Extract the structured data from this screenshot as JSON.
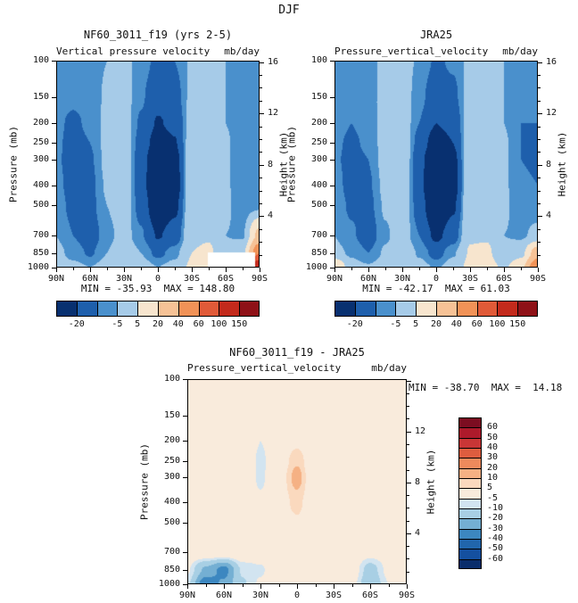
{
  "figure": {
    "title": "DJF"
  },
  "chart_data": [
    {
      "type": "filled-contour",
      "title": "NF60_3011_f19 (yrs 2-5)",
      "subtitle": "Vertical pressure velocity",
      "units": "mb/day",
      "stats": "MIN = -35.93  MAX = 148.80",
      "ylabel_left": "Pressure (mb)",
      "ylabel_right": "Height (km)",
      "x_tick_labels": [
        "90N",
        "60N",
        "30N",
        "0",
        "30S",
        "60S",
        "90S"
      ],
      "pressure_ticks": [
        100,
        150,
        200,
        250,
        300,
        400,
        500,
        700,
        850,
        1000
      ],
      "height_ticks": [
        16,
        12,
        8,
        4
      ],
      "grid": {
        "lat": [
          90,
          75,
          60,
          45,
          30,
          15,
          0,
          -15,
          -30,
          -45,
          -60,
          -75,
          -90
        ],
        "pressure": [
          100,
          150,
          200,
          250,
          300,
          400,
          500,
          700,
          850,
          1000
        ],
        "values": [
          [
            -7,
            -8,
            -7,
            -5,
            -3,
            -7,
            -12,
            -10,
            -4,
            -3,
            -5,
            -7,
            -7
          ],
          [
            -8,
            -9,
            -8,
            -4,
            -2,
            -9,
            -16,
            -13,
            -3,
            -2,
            -5,
            -8,
            -8
          ],
          [
            -9,
            -11,
            -9,
            -3,
            -1,
            -11,
            -21,
            -17,
            -1,
            0,
            -5,
            -9,
            -9
          ],
          [
            -9,
            -12,
            -10,
            -3,
            0,
            -13,
            -26,
            -21,
            1,
            2,
            -4,
            -9,
            -10
          ],
          [
            -9,
            -13,
            -11,
            -3,
            1,
            -15,
            -32,
            -25,
            3,
            3,
            -4,
            -9,
            -10
          ],
          [
            -8,
            -13,
            -12,
            -4,
            1,
            -15,
            -35,
            -27,
            4,
            4,
            -4,
            -9,
            -9
          ],
          [
            -7,
            -12,
            -12,
            -5,
            0,
            -13,
            -30,
            -23,
            4,
            5,
            -4,
            -8,
            -7
          ],
          [
            -5,
            -10,
            -14,
            -7,
            -2,
            -9,
            -21,
            -15,
            3,
            4,
            -5,
            -6,
            25
          ],
          [
            -3,
            -7,
            -11,
            -5,
            1,
            -5,
            -12,
            -7,
            5,
            7,
            -3,
            2,
            60
          ],
          [
            -2,
            -3,
            -5,
            -2,
            4,
            -1,
            -5,
            -2,
            7,
            9,
            3,
            30,
            148
          ]
        ]
      },
      "mask": {
        "lat": [
          -86,
          -44
        ],
        "pressure": [
          845,
          1000
        ],
        "color": "#FFFFFF"
      },
      "colorbar": {
        "orientation": "horizontal",
        "levels": [
          -20,
          -10,
          -5,
          5,
          20,
          40,
          60,
          100,
          150
        ],
        "labels": [
          "-20",
          "",
          "-5",
          "5",
          "20",
          "40",
          "60",
          "100",
          "150"
        ],
        "colors": [
          "#083070",
          "#1E5FAC",
          "#4A90CC",
          "#A6CBE8",
          "#F7E5CE",
          "#F6C296",
          "#F19257",
          "#E05A38",
          "#C32A1C",
          "#8E1117"
        ]
      }
    },
    {
      "type": "filled-contour",
      "title": "JRA25",
      "subtitle": "Pressure_vertical_velocity",
      "units": "mb/day",
      "stats": "MIN = -42.17  MAX = 61.03",
      "ylabel_left": "Pressure (mb)",
      "ylabel_right": "Height (km)",
      "x_tick_labels": [
        "90N",
        "60N",
        "30N",
        "0",
        "30S",
        "60S",
        "90S"
      ],
      "pressure_ticks": [
        100,
        150,
        200,
        250,
        300,
        400,
        500,
        700,
        850,
        1000
      ],
      "height_ticks": [
        16,
        12,
        8,
        4
      ],
      "grid": {
        "lat": [
          90,
          75,
          60,
          45,
          30,
          15,
          0,
          -15,
          -30,
          -45,
          -60,
          -75,
          -90
        ],
        "pressure": [
          100,
          150,
          200,
          250,
          300,
          400,
          500,
          700,
          850,
          1000
        ],
        "values": [
          [
            -6,
            -7,
            -6,
            -4,
            -2,
            -6,
            -11,
            -9,
            -3,
            -2,
            -5,
            -8,
            -8
          ],
          [
            -7,
            -9,
            -7,
            -3,
            -1,
            -8,
            -15,
            -12,
            -2,
            -1,
            -5,
            -9,
            -9
          ],
          [
            -8,
            -10,
            -8,
            -2,
            0,
            -10,
            -20,
            -16,
            0,
            1,
            -5,
            -10,
            -10
          ],
          [
            -9,
            -11,
            -9,
            -2,
            2,
            -13,
            -27,
            -20,
            2,
            2,
            -4,
            -10,
            -11
          ],
          [
            -9,
            -12,
            -10,
            -2,
            3,
            -16,
            -34,
            -24,
            4,
            3,
            -4,
            -10,
            -11
          ],
          [
            -8,
            -12,
            -11,
            -3,
            2,
            -16,
            -40,
            -26,
            5,
            4,
            -4,
            -9,
            -10
          ],
          [
            -7,
            -11,
            -12,
            -4,
            1,
            -14,
            -34,
            -22,
            5,
            5,
            -4,
            -8,
            -8
          ],
          [
            -5,
            -9,
            -14,
            -6,
            -1,
            -10,
            -23,
            -14,
            4,
            4,
            -5,
            -6,
            -3
          ],
          [
            -3,
            -6,
            -10,
            -4,
            2,
            -6,
            -13,
            -6,
            6,
            7,
            -3,
            1,
            30
          ],
          [
            20,
            -2,
            -4,
            -1,
            5,
            -2,
            -6,
            -1,
            8,
            10,
            3,
            15,
            61
          ]
        ]
      },
      "colorbar": {
        "orientation": "horizontal",
        "levels": [
          -20,
          -10,
          -5,
          5,
          20,
          40,
          60,
          100,
          150
        ],
        "labels": [
          "-20",
          "",
          "-5",
          "5",
          "20",
          "40",
          "60",
          "100",
          "150"
        ],
        "colors": [
          "#083070",
          "#1E5FAC",
          "#4A90CC",
          "#A6CBE8",
          "#F7E5CE",
          "#F6C296",
          "#F19257",
          "#E05A38",
          "#C32A1C",
          "#8E1117"
        ]
      }
    },
    {
      "type": "filled-contour",
      "title": "NF60_3011_f19 - JRA25",
      "subtitle": "Pressure_vertical_velocity",
      "units": "mb/day",
      "stats": "MIN = -38.70  MAX =  14.18",
      "ylabel_left": "Pressure (mb)",
      "ylabel_right": "Height (km)",
      "x_tick_labels": [
        "90N",
        "60N",
        "30N",
        "0",
        "30S",
        "60S",
        "90S"
      ],
      "pressure_ticks": [
        100,
        150,
        200,
        250,
        300,
        400,
        500,
        700,
        850,
        1000
      ],
      "height_ticks": [
        12,
        8,
        4
      ],
      "grid": {
        "lat": [
          90,
          75,
          60,
          45,
          30,
          15,
          0,
          -15,
          -30,
          -45,
          -60,
          -75,
          -90
        ],
        "pressure": [
          100,
          150,
          200,
          250,
          300,
          400,
          500,
          700,
          850,
          1000
        ],
        "values": [
          [
            1,
            1,
            1,
            0,
            -2,
            -2,
            -1,
            -1,
            0,
            1,
            -2,
            -3,
            -1
          ],
          [
            1,
            1,
            1,
            0,
            -3,
            -2,
            0,
            -2,
            0,
            1,
            -2,
            -4,
            -2
          ],
          [
            1,
            2,
            1,
            0,
            -5,
            -2,
            3,
            -3,
            -1,
            1,
            -3,
            -4,
            -2
          ],
          [
            1,
            2,
            1,
            0,
            -6,
            -1,
            9,
            -4,
            -2,
            1,
            -3,
            -3,
            -2
          ],
          [
            1,
            2,
            1,
            0,
            -6,
            0,
            13,
            -4,
            -2,
            1,
            -2,
            -2,
            -1
          ],
          [
            1,
            2,
            1,
            1,
            -4,
            1,
            7,
            -2,
            -1,
            1,
            -1,
            -1,
            0
          ],
          [
            1,
            2,
            1,
            1,
            -2,
            1,
            4,
            -1,
            -1,
            1,
            -1,
            -1,
            1
          ],
          [
            1,
            2,
            2,
            1,
            -1,
            1,
            2,
            -1,
            -1,
            1,
            -2,
            -1,
            1
          ],
          [
            -4,
            -22,
            -34,
            -9,
            -6,
            1,
            2,
            -1,
            0,
            0,
            -14,
            -3,
            1
          ],
          [
            -8,
            -38,
            -28,
            -11,
            -4,
            2,
            3,
            1,
            1,
            -2,
            -18,
            -5,
            2
          ]
        ]
      },
      "colorbar": {
        "orientation": "vertical",
        "levels": [
          -60,
          -50,
          -40,
          -30,
          -20,
          -10,
          -5,
          5,
          10,
          20,
          30,
          40,
          50,
          60
        ],
        "labels": [
          "-60",
          "-50",
          "-40",
          "-30",
          "-20",
          "-10",
          "-5",
          "5",
          "10",
          "20",
          "30",
          "40",
          "50",
          "60"
        ],
        "colors": [
          "#0A2D6B",
          "#1450A0",
          "#2166AC",
          "#3C87C0",
          "#74AFD3",
          "#A8CFE4",
          "#D2E4F0",
          "#F9EBDC",
          "#FAD9BE",
          "#F5B184",
          "#EE8A5C",
          "#DE5D3F",
          "#C93636",
          "#AD1A2B",
          "#7C0D21"
        ]
      }
    }
  ]
}
